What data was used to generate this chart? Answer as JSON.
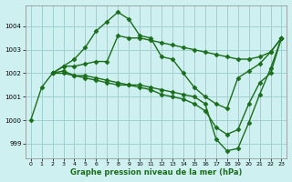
{
  "title": "Graphe pression niveau de la mer (hPa)",
  "bg_color": "#cff0f0",
  "grid_color": "#a0d0d0",
  "line_color": "#1a6e1a",
  "marker": "D",
  "markersize": 2.5,
  "linewidth": 1.0,
  "xlim": [
    -0.5,
    23.5
  ],
  "ylim": [
    998.4,
    1004.9
  ],
  "yticks": [
    999,
    1000,
    1001,
    1002,
    1003,
    1004
  ],
  "xticks": [
    0,
    1,
    2,
    3,
    4,
    5,
    6,
    7,
    8,
    9,
    10,
    11,
    12,
    13,
    14,
    15,
    16,
    17,
    18,
    19,
    20,
    21,
    22,
    23
  ],
  "lines": [
    {
      "x": [
        0,
        1,
        2,
        3,
        4,
        5,
        6,
        7,
        8,
        9,
        10,
        11,
        12,
        13,
        14,
        15,
        16,
        17,
        18,
        19,
        20,
        21,
        22,
        23
      ],
      "y": [
        1000.0,
        1001.4,
        1002.0,
        1002.3,
        1002.6,
        1003.1,
        1003.8,
        1004.2,
        1004.6,
        1004.3,
        1003.6,
        1003.5,
        1002.7,
        1002.6,
        1002.0,
        1001.4,
        1001.0,
        1000.7,
        1000.5,
        1001.8,
        1002.1,
        1002.4,
        1002.9,
        1003.5
      ]
    },
    {
      "x": [
        2,
        3,
        4,
        5,
        6,
        7,
        8,
        9,
        10,
        11,
        12,
        13,
        14,
        15,
        16,
        17,
        18,
        19,
        20,
        21,
        22,
        23
      ],
      "y": [
        1002.0,
        1002.3,
        1002.3,
        1002.4,
        1002.5,
        1002.5,
        1003.6,
        1003.5,
        1003.5,
        1003.4,
        1003.3,
        1003.2,
        1003.1,
        1003.0,
        1002.9,
        1002.8,
        1002.7,
        1002.6,
        1002.6,
        1002.7,
        1002.9,
        1003.5
      ]
    },
    {
      "x": [
        2,
        3,
        4,
        5,
        6,
        7,
        8,
        9,
        10,
        11,
        12,
        13,
        14,
        15,
        16,
        17,
        18,
        19,
        20,
        21,
        22,
        23
      ],
      "y": [
        1002.0,
        1002.1,
        1001.9,
        1001.9,
        1001.8,
        1001.7,
        1001.6,
        1001.5,
        1001.4,
        1001.3,
        1001.1,
        1001.0,
        1000.9,
        1000.7,
        1000.4,
        999.7,
        999.4,
        999.6,
        1000.7,
        1001.6,
        1002.0,
        1003.5
      ]
    },
    {
      "x": [
        2,
        3,
        4,
        5,
        6,
        7,
        8,
        9,
        10,
        11,
        12,
        13,
        14,
        15,
        16,
        17,
        18,
        19,
        20,
        21,
        22,
        23
      ],
      "y": [
        1002.0,
        1002.0,
        1001.9,
        1001.8,
        1001.7,
        1001.6,
        1001.5,
        1001.5,
        1001.5,
        1001.4,
        1001.3,
        1001.2,
        1001.1,
        1001.0,
        1000.7,
        999.2,
        998.7,
        998.8,
        999.9,
        1001.1,
        1002.2,
        1003.5
      ]
    }
  ]
}
